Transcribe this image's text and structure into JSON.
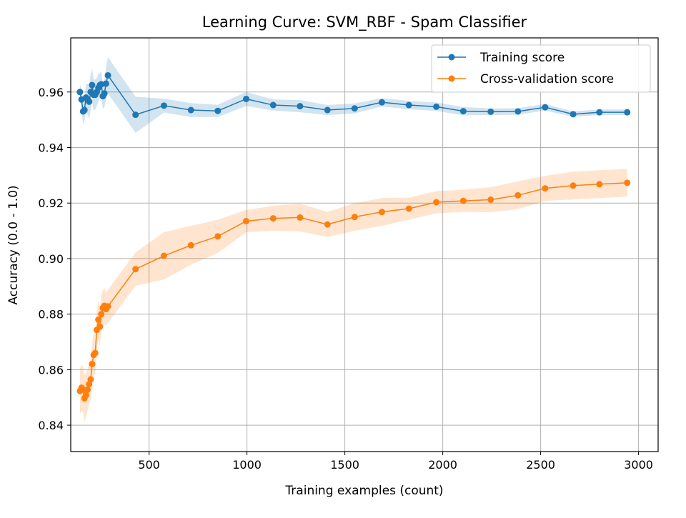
{
  "chart_data": {
    "type": "line",
    "title": "Learning Curve: SVM_RBF - Spam Classifier",
    "xlabel": "Training examples (count)",
    "ylabel": "Accuracy (0.0 - 1.0)",
    "xlim": [
      100,
      3100
    ],
    "ylim": [
      0.8305,
      0.9795
    ],
    "xticks": [
      500,
      1000,
      1500,
      2000,
      2500,
      3000
    ],
    "yticks": [
      0.84,
      0.86,
      0.88,
      0.9,
      0.92,
      0.94,
      0.96
    ],
    "xtick_labels": [
      "500",
      "1000",
      "1500",
      "2000",
      "2500",
      "3000"
    ],
    "ytick_labels": [
      "0.84",
      "0.86",
      "0.88",
      "0.90",
      "0.92",
      "0.94",
      "0.96"
    ],
    "grid": true,
    "legend_position": "top-right",
    "series": [
      {
        "name": "Training score",
        "color": "#1f77b4",
        "band_color": "#1f77b4",
        "x": [
          147,
          155,
          163,
          170,
          178,
          186,
          194,
          202,
          209,
          217,
          225,
          233,
          241,
          249,
          256,
          264,
          272,
          280,
          290,
          431,
          576,
          714,
          851,
          996,
          1134,
          1271,
          1411,
          1550,
          1689,
          1827,
          1967,
          2105,
          2245,
          2384,
          2523,
          2666,
          2800,
          2942
        ],
        "values": [
          0.96,
          0.9573,
          0.953,
          0.9535,
          0.958,
          0.9573,
          0.9565,
          0.96,
          0.9625,
          0.959,
          0.959,
          0.96,
          0.9615,
          0.9625,
          0.9628,
          0.9585,
          0.9595,
          0.963,
          0.966,
          0.9518,
          0.9551,
          0.9535,
          0.9532,
          0.9575,
          0.9553,
          0.9549,
          0.9535,
          0.9541,
          0.9563,
          0.9553,
          0.9547,
          0.9531,
          0.9529,
          0.953,
          0.9545,
          0.952,
          0.9527,
          0.9527
        ],
        "std": [
          0.003,
          0.0035,
          0.0045,
          0.004,
          0.005,
          0.0055,
          0.006,
          0.0065,
          0.006,
          0.0055,
          0.0055,
          0.005,
          0.005,
          0.0045,
          0.0045,
          0.0045,
          0.005,
          0.006,
          0.0065,
          0.0065,
          0.0025,
          0.0025,
          0.0022,
          0.0025,
          0.002,
          0.0022,
          0.0018,
          0.0018,
          0.0015,
          0.0015,
          0.0015,
          0.0015,
          0.0012,
          0.0012,
          0.0012,
          0.001,
          0.001,
          0.001
        ]
      },
      {
        "name": "Cross-validation score",
        "color": "#ff7f0e",
        "band_color": "#ff7f0e",
        "x": [
          147,
          155,
          163,
          170,
          178,
          186,
          194,
          202,
          209,
          217,
          225,
          233,
          241,
          249,
          256,
          264,
          272,
          280,
          290,
          431,
          576,
          714,
          851,
          996,
          1134,
          1271,
          1411,
          1550,
          1689,
          1827,
          1967,
          2105,
          2245,
          2384,
          2523,
          2666,
          2800,
          2942
        ],
        "values": [
          0.8523,
          0.8535,
          0.8528,
          0.8497,
          0.8508,
          0.8528,
          0.8548,
          0.8565,
          0.862,
          0.8653,
          0.866,
          0.8743,
          0.878,
          0.8755,
          0.88,
          0.8822,
          0.883,
          0.8818,
          0.8828,
          0.8962,
          0.901,
          0.9048,
          0.908,
          0.9135,
          0.9145,
          0.9148,
          0.9123,
          0.915,
          0.9168,
          0.918,
          0.9203,
          0.9208,
          0.9212,
          0.9228,
          0.9253,
          0.9263,
          0.9268,
          0.9273
        ],
        "std": [
          0.008,
          0.0085,
          0.008,
          0.0085,
          0.008,
          0.0075,
          0.0075,
          0.0075,
          0.0075,
          0.0075,
          0.0075,
          0.007,
          0.007,
          0.007,
          0.0065,
          0.0065,
          0.0065,
          0.006,
          0.006,
          0.006,
          0.0085,
          0.007,
          0.006,
          0.004,
          0.0045,
          0.005,
          0.0045,
          0.005,
          0.005,
          0.004,
          0.004,
          0.004,
          0.0045,
          0.005,
          0.0045,
          0.005,
          0.005,
          0.005
        ]
      }
    ]
  }
}
